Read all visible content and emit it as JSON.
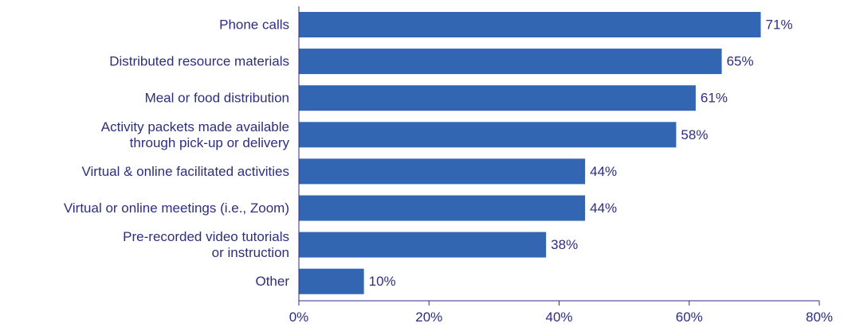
{
  "chart_data": {
    "type": "bar",
    "orientation": "horizontal",
    "categories": [
      [
        "Phone calls"
      ],
      [
        "Distributed resource materials"
      ],
      [
        "Meal or food distribution"
      ],
      [
        "Activity packets made available",
        "through pick-up or delivery"
      ],
      [
        "Virtual & online facilitated activities"
      ],
      [
        "Virtual or online meetings (i.e., Zoom)"
      ],
      [
        "Pre-recorded video tutorials",
        "or instruction"
      ],
      [
        "Other"
      ]
    ],
    "values": [
      71,
      65,
      61,
      58,
      44,
      44,
      38,
      10
    ],
    "value_labels": [
      "71%",
      "65%",
      "61%",
      "58%",
      "44%",
      "44%",
      "38%",
      "10%"
    ],
    "xlim": [
      0,
      80
    ],
    "x_ticks": [
      0,
      20,
      40,
      60,
      80
    ],
    "x_tick_labels": [
      "0%",
      "20%",
      "40%",
      "60%",
      "80%"
    ],
    "title": "",
    "xlabel": "",
    "ylabel": "",
    "grid": false,
    "legend": "none",
    "colors": {
      "bar": "#3366b2",
      "text": "#2e2e7e",
      "axis": "#2e2e7e"
    }
  }
}
